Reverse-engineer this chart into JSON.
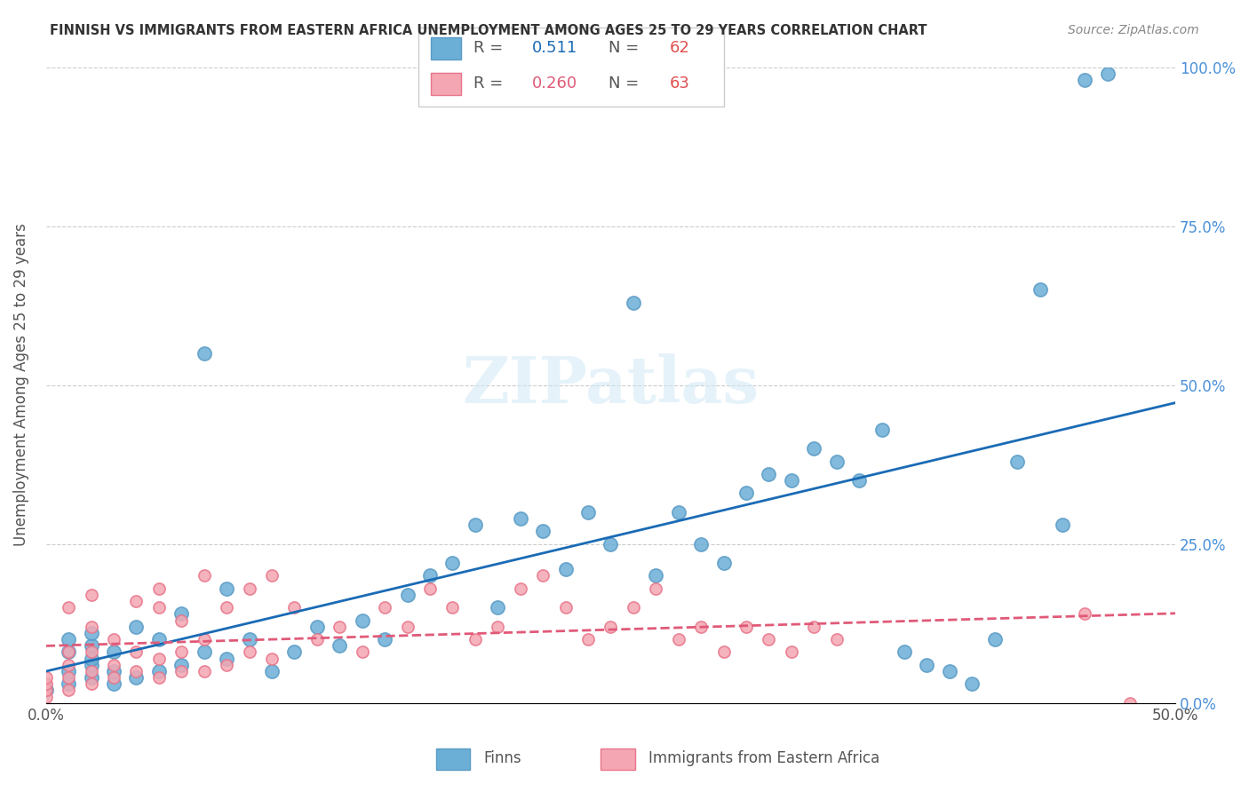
{
  "title": "FINNISH VS IMMIGRANTS FROM EASTERN AFRICA UNEMPLOYMENT AMONG AGES 25 TO 29 YEARS CORRELATION CHART",
  "source": "Source: ZipAtlas.com",
  "xlabel": "",
  "ylabel": "Unemployment Among Ages 25 to 29 years",
  "xlim": [
    0.0,
    0.5
  ],
  "ylim": [
    0.0,
    1.0
  ],
  "xtick_labels": [
    "0.0%",
    "50.0%"
  ],
  "ytick_labels": [
    "0.0%",
    "25.0%",
    "50.0%",
    "75.0%",
    "100.0%"
  ],
  "legend_r1": "R =  0.511",
  "legend_n1": "N = 62",
  "legend_r2": "R =  0.260",
  "legend_n2": "N = 63",
  "legend_label1": "Finns",
  "legend_label2": "Immigrants from Eastern Africa",
  "blue_color": "#6baed6",
  "pink_color": "#f4a6b2",
  "blue_edge": "#5a9bc5",
  "pink_edge": "#e8758a",
  "blue_line_color": "#1a6bb5",
  "pink_line_color": "#e05a78",
  "watermark": "ZIPatlas",
  "finns_x": [
    0.0,
    0.01,
    0.01,
    0.01,
    0.01,
    0.02,
    0.02,
    0.02,
    0.02,
    0.02,
    0.03,
    0.03,
    0.03,
    0.04,
    0.04,
    0.05,
    0.05,
    0.06,
    0.06,
    0.07,
    0.07,
    0.08,
    0.08,
    0.09,
    0.1,
    0.11,
    0.12,
    0.13,
    0.14,
    0.15,
    0.16,
    0.17,
    0.18,
    0.19,
    0.2,
    0.21,
    0.22,
    0.23,
    0.24,
    0.25,
    0.26,
    0.27,
    0.28,
    0.29,
    0.3,
    0.31,
    0.32,
    0.33,
    0.34,
    0.35,
    0.36,
    0.37,
    0.38,
    0.39,
    0.4,
    0.41,
    0.42,
    0.43,
    0.44,
    0.45,
    0.46,
    0.47
  ],
  "finns_y": [
    0.02,
    0.03,
    0.05,
    0.08,
    0.1,
    0.04,
    0.06,
    0.07,
    0.09,
    0.11,
    0.03,
    0.05,
    0.08,
    0.04,
    0.12,
    0.05,
    0.1,
    0.06,
    0.14,
    0.08,
    0.55,
    0.07,
    0.18,
    0.1,
    0.05,
    0.08,
    0.12,
    0.09,
    0.13,
    0.1,
    0.17,
    0.2,
    0.22,
    0.28,
    0.15,
    0.29,
    0.27,
    0.21,
    0.3,
    0.25,
    0.63,
    0.2,
    0.3,
    0.25,
    0.22,
    0.33,
    0.36,
    0.35,
    0.4,
    0.38,
    0.35,
    0.43,
    0.08,
    0.06,
    0.05,
    0.03,
    0.1,
    0.38,
    0.65,
    0.28,
    0.98,
    0.99
  ],
  "immigrants_x": [
    0.0,
    0.0,
    0.0,
    0.0,
    0.01,
    0.01,
    0.01,
    0.01,
    0.01,
    0.02,
    0.02,
    0.02,
    0.02,
    0.02,
    0.03,
    0.03,
    0.03,
    0.04,
    0.04,
    0.04,
    0.05,
    0.05,
    0.05,
    0.05,
    0.06,
    0.06,
    0.06,
    0.07,
    0.07,
    0.07,
    0.08,
    0.08,
    0.09,
    0.09,
    0.1,
    0.1,
    0.11,
    0.12,
    0.13,
    0.14,
    0.15,
    0.16,
    0.17,
    0.18,
    0.19,
    0.2,
    0.21,
    0.22,
    0.23,
    0.24,
    0.25,
    0.26,
    0.27,
    0.28,
    0.29,
    0.3,
    0.31,
    0.32,
    0.33,
    0.34,
    0.35,
    0.46,
    0.48
  ],
  "immigrants_y": [
    0.01,
    0.02,
    0.03,
    0.04,
    0.02,
    0.04,
    0.06,
    0.08,
    0.15,
    0.03,
    0.05,
    0.08,
    0.12,
    0.17,
    0.04,
    0.06,
    0.1,
    0.05,
    0.08,
    0.16,
    0.04,
    0.07,
    0.15,
    0.18,
    0.05,
    0.08,
    0.13,
    0.05,
    0.1,
    0.2,
    0.06,
    0.15,
    0.08,
    0.18,
    0.07,
    0.2,
    0.15,
    0.1,
    0.12,
    0.08,
    0.15,
    0.12,
    0.18,
    0.15,
    0.1,
    0.12,
    0.18,
    0.2,
    0.15,
    0.1,
    0.12,
    0.15,
    0.18,
    0.1,
    0.12,
    0.08,
    0.12,
    0.1,
    0.08,
    0.12,
    0.1,
    0.14,
    0.0
  ]
}
